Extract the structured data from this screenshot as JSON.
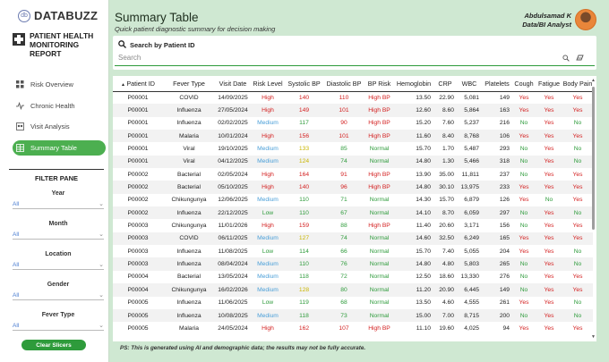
{
  "brand": {
    "name": "DATABUZZ",
    "logo_initials": "db"
  },
  "report_title": "PATIENT HEALTH MONITORING REPORT",
  "nav": [
    {
      "label": "Risk Overview",
      "icon": "grid-icon",
      "active": false
    },
    {
      "label": "Chronic Health",
      "icon": "pulse-icon",
      "active": false
    },
    {
      "label": "Visit Analysis",
      "icon": "users-icon",
      "active": false
    },
    {
      "label": "Summary Table",
      "icon": "table-icon",
      "active": true
    }
  ],
  "filter_pane": {
    "title": "FILTER PANE",
    "filters": [
      {
        "label": "Year",
        "value": "All"
      },
      {
        "label": "Month",
        "value": "All"
      },
      {
        "label": "Location",
        "value": "All"
      },
      {
        "label": "Gender",
        "value": "All"
      },
      {
        "label": "Fever Type",
        "value": "All"
      }
    ],
    "clear_label": "Clear Slicers"
  },
  "header": {
    "title": "Summary Table",
    "subtitle": "Quick patient diagnostic summary for decision making",
    "user_name": "Abdulsamad K",
    "user_role": "Data/BI Analyst"
  },
  "search": {
    "label": "Search by Patient ID",
    "placeholder": "Search"
  },
  "table": {
    "columns": [
      "Patient ID",
      "Fever Type",
      "Visit Date",
      "Risk Level",
      "Systolic BP",
      "Diastolic BP",
      "BP Risk",
      "Hemoglobin",
      "CRP",
      "WBC",
      "Platelets",
      "Cough",
      "Fatigue",
      "Body Pain"
    ],
    "rows": [
      [
        "P00001",
        "COVID",
        "14/09/2025",
        "High",
        "140",
        "110",
        "High BP",
        "13.50",
        "22.90",
        "5,081",
        "149",
        "Yes",
        "Yes",
        "Yes"
      ],
      [
        "P00001",
        "Influenza",
        "27/05/2024",
        "High",
        "149",
        "101",
        "High BP",
        "12.60",
        "8.60",
        "5,864",
        "163",
        "Yes",
        "Yes",
        "Yes"
      ],
      [
        "P00001",
        "Influenza",
        "02/02/2025",
        "Medium",
        "117",
        "90",
        "High BP",
        "15.20",
        "7.60",
        "5,237",
        "216",
        "No",
        "Yes",
        "No"
      ],
      [
        "P00001",
        "Malaria",
        "10/01/2024",
        "High",
        "156",
        "101",
        "High BP",
        "11.60",
        "8.40",
        "8,768",
        "106",
        "Yes",
        "Yes",
        "Yes"
      ],
      [
        "P00001",
        "Viral",
        "19/10/2025",
        "Medium",
        "133",
        "85",
        "Normal",
        "15.70",
        "1.70",
        "5,487",
        "293",
        "No",
        "Yes",
        "No"
      ],
      [
        "P00001",
        "Viral",
        "04/12/2025",
        "Medium",
        "124",
        "74",
        "Normal",
        "14.80",
        "1.30",
        "5,466",
        "318",
        "No",
        "Yes",
        "No"
      ],
      [
        "P00002",
        "Bacterial",
        "02/05/2024",
        "High",
        "164",
        "91",
        "High BP",
        "13.90",
        "35.00",
        "11,811",
        "237",
        "No",
        "Yes",
        "Yes"
      ],
      [
        "P00002",
        "Bacterial",
        "05/10/2025",
        "High",
        "140",
        "96",
        "High BP",
        "14.80",
        "30.10",
        "13,975",
        "233",
        "Yes",
        "Yes",
        "Yes"
      ],
      [
        "P00002",
        "Chikungunya",
        "12/06/2025",
        "Medium",
        "110",
        "71",
        "Normal",
        "14.30",
        "15.70",
        "6,879",
        "126",
        "Yes",
        "No",
        "Yes"
      ],
      [
        "P00002",
        "Influenza",
        "22/12/2025",
        "Low",
        "110",
        "67",
        "Normal",
        "14.10",
        "8.70",
        "6,059",
        "297",
        "No",
        "Yes",
        "No"
      ],
      [
        "P00003",
        "Chikungunya",
        "11/01/2026",
        "High",
        "159",
        "88",
        "High BP",
        "11.40",
        "20.60",
        "3,171",
        "156",
        "No",
        "Yes",
        "Yes"
      ],
      [
        "P00003",
        "COVID",
        "06/11/2025",
        "Medium",
        "127",
        "74",
        "Normal",
        "14.60",
        "32.50",
        "6,249",
        "165",
        "Yes",
        "Yes",
        "Yes"
      ],
      [
        "P00003",
        "Influenza",
        "11/08/2025",
        "Low",
        "114",
        "66",
        "Normal",
        "15.70",
        "7.40",
        "5,055",
        "204",
        "Yes",
        "Yes",
        "No"
      ],
      [
        "P00003",
        "Influenza",
        "08/04/2024",
        "Medium",
        "110",
        "76",
        "Normal",
        "14.80",
        "4.80",
        "5,803",
        "265",
        "No",
        "Yes",
        "No"
      ],
      [
        "P00004",
        "Bacterial",
        "13/05/2024",
        "Medium",
        "118",
        "72",
        "Normal",
        "12.50",
        "18.60",
        "13,330",
        "276",
        "No",
        "Yes",
        "Yes"
      ],
      [
        "P00004",
        "Chikungunya",
        "16/02/2026",
        "Medium",
        "128",
        "80",
        "Normal",
        "11.20",
        "20.90",
        "6,445",
        "149",
        "No",
        "Yes",
        "Yes"
      ],
      [
        "P00005",
        "Influenza",
        "11/06/2025",
        "Low",
        "119",
        "68",
        "Normal",
        "13.50",
        "4.60",
        "4,555",
        "261",
        "Yes",
        "Yes",
        "No"
      ],
      [
        "P00005",
        "Influenza",
        "10/08/2025",
        "Medium",
        "118",
        "73",
        "Normal",
        "15.00",
        "7.00",
        "8,715",
        "200",
        "No",
        "Yes",
        "No"
      ],
      [
        "P00005",
        "Malaria",
        "24/05/2024",
        "High",
        "162",
        "107",
        "High BP",
        "11.10",
        "19.60",
        "4,025",
        "94",
        "Yes",
        "Yes",
        "Yes"
      ]
    ]
  },
  "footnote": "PS: This is generated using AI and demographic data; the results may not be fully accurate.",
  "colors": {
    "accent": "#4caf50",
    "high": "#d32020",
    "normal": "#2e9b3b",
    "medium": "#4a9fd8",
    "background": "#cfe8d2"
  }
}
